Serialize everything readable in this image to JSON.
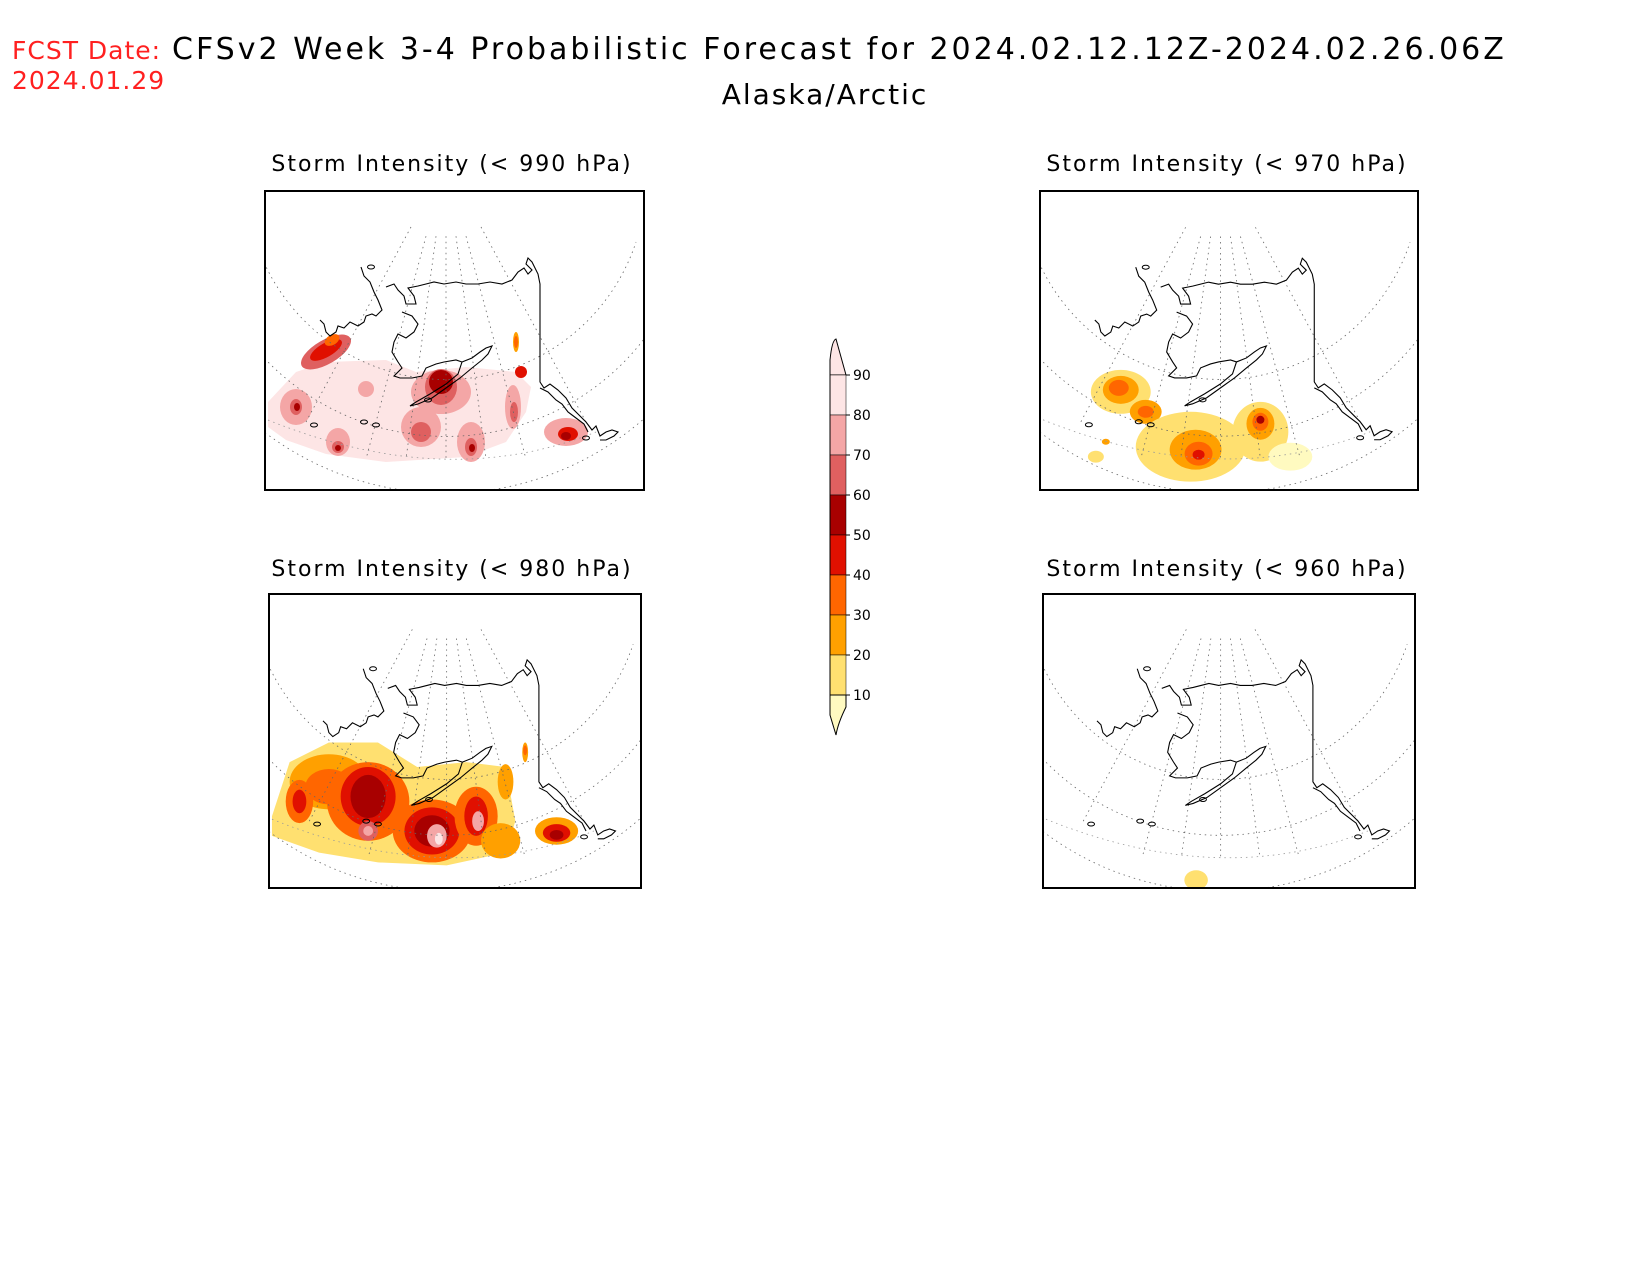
{
  "header": {
    "fcst_label": "FCST Date:",
    "fcst_date": "2024.01.29",
    "title": "CFSv2 Week 3-4 Probabilistic Forecast for 2024.02.12.12Z-2024.02.26.06Z",
    "region": "Alaska/Arctic"
  },
  "panels": [
    {
      "title": "Storm Intensity (< 990 hPa)"
    },
    {
      "title": "Storm Intensity (< 970 hPa)"
    },
    {
      "title": "Storm Intensity (< 980 hPa)"
    },
    {
      "title": "Storm Intensity (< 960 hPa)"
    }
  ],
  "colorbar": {
    "labels": [
      "90",
      "80",
      "70",
      "60",
      "50",
      "40",
      "30",
      "20",
      "10"
    ],
    "colors": [
      "#fde5e5",
      "#f4a6a6",
      "#df6060",
      "#a80000",
      "#e01000",
      "#ff6600",
      "#ffa000",
      "#ffe070",
      "#fffac0"
    ]
  }
}
